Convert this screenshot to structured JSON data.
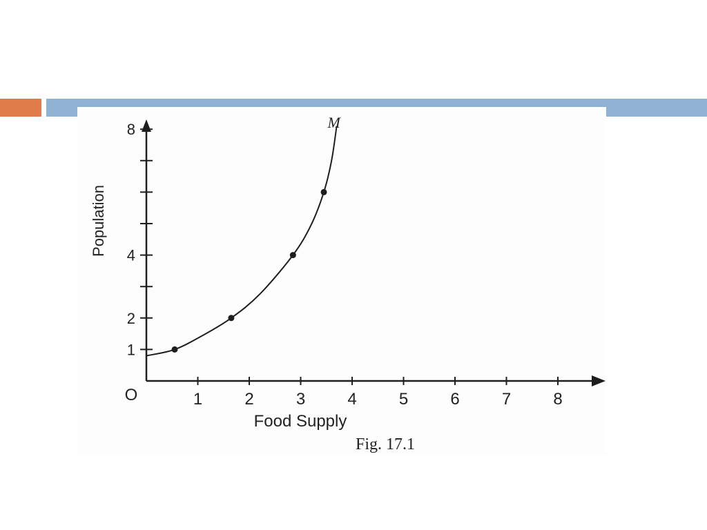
{
  "theme": {
    "accent_color": "#e07b4a",
    "rule_color": "#8fb1d2",
    "ink_color": "#1e1e1e"
  },
  "chart_data": {
    "type": "line",
    "title": "",
    "xlabel": "Food Supply",
    "ylabel": "Population",
    "caption": "Fig. 17.1",
    "origin_label": "O",
    "curve_label": "M",
    "xlim": [
      0,
      8
    ],
    "ylim": [
      0,
      8
    ],
    "x_ticks": [
      1,
      2,
      3,
      4,
      5,
      6,
      7,
      8
    ],
    "x_tick_labels": [
      "1",
      "2",
      "3",
      "4",
      "5",
      "6",
      "7",
      "8"
    ],
    "y_ticks": [
      1,
      2,
      3,
      4,
      5,
      6,
      7,
      8
    ],
    "y_tick_labels": [
      "1",
      "2",
      "",
      "4",
      "",
      "",
      "",
      "8"
    ],
    "series": [
      {
        "points": [
          {
            "x": 0.55,
            "y": 1
          },
          {
            "x": 1.65,
            "y": 2
          },
          {
            "x": 2.85,
            "y": 4
          },
          {
            "x": 3.45,
            "y": 6
          }
        ],
        "curve": [
          [
            0,
            0.8
          ],
          [
            0.55,
            1
          ],
          [
            1.1,
            1.45
          ],
          [
            1.65,
            2
          ],
          [
            2.2,
            2.75
          ],
          [
            2.85,
            4
          ],
          [
            3.2,
            4.95
          ],
          [
            3.45,
            6
          ],
          [
            3.6,
            7
          ],
          [
            3.7,
            8.1
          ]
        ]
      }
    ],
    "grid": false,
    "legend": "none"
  }
}
